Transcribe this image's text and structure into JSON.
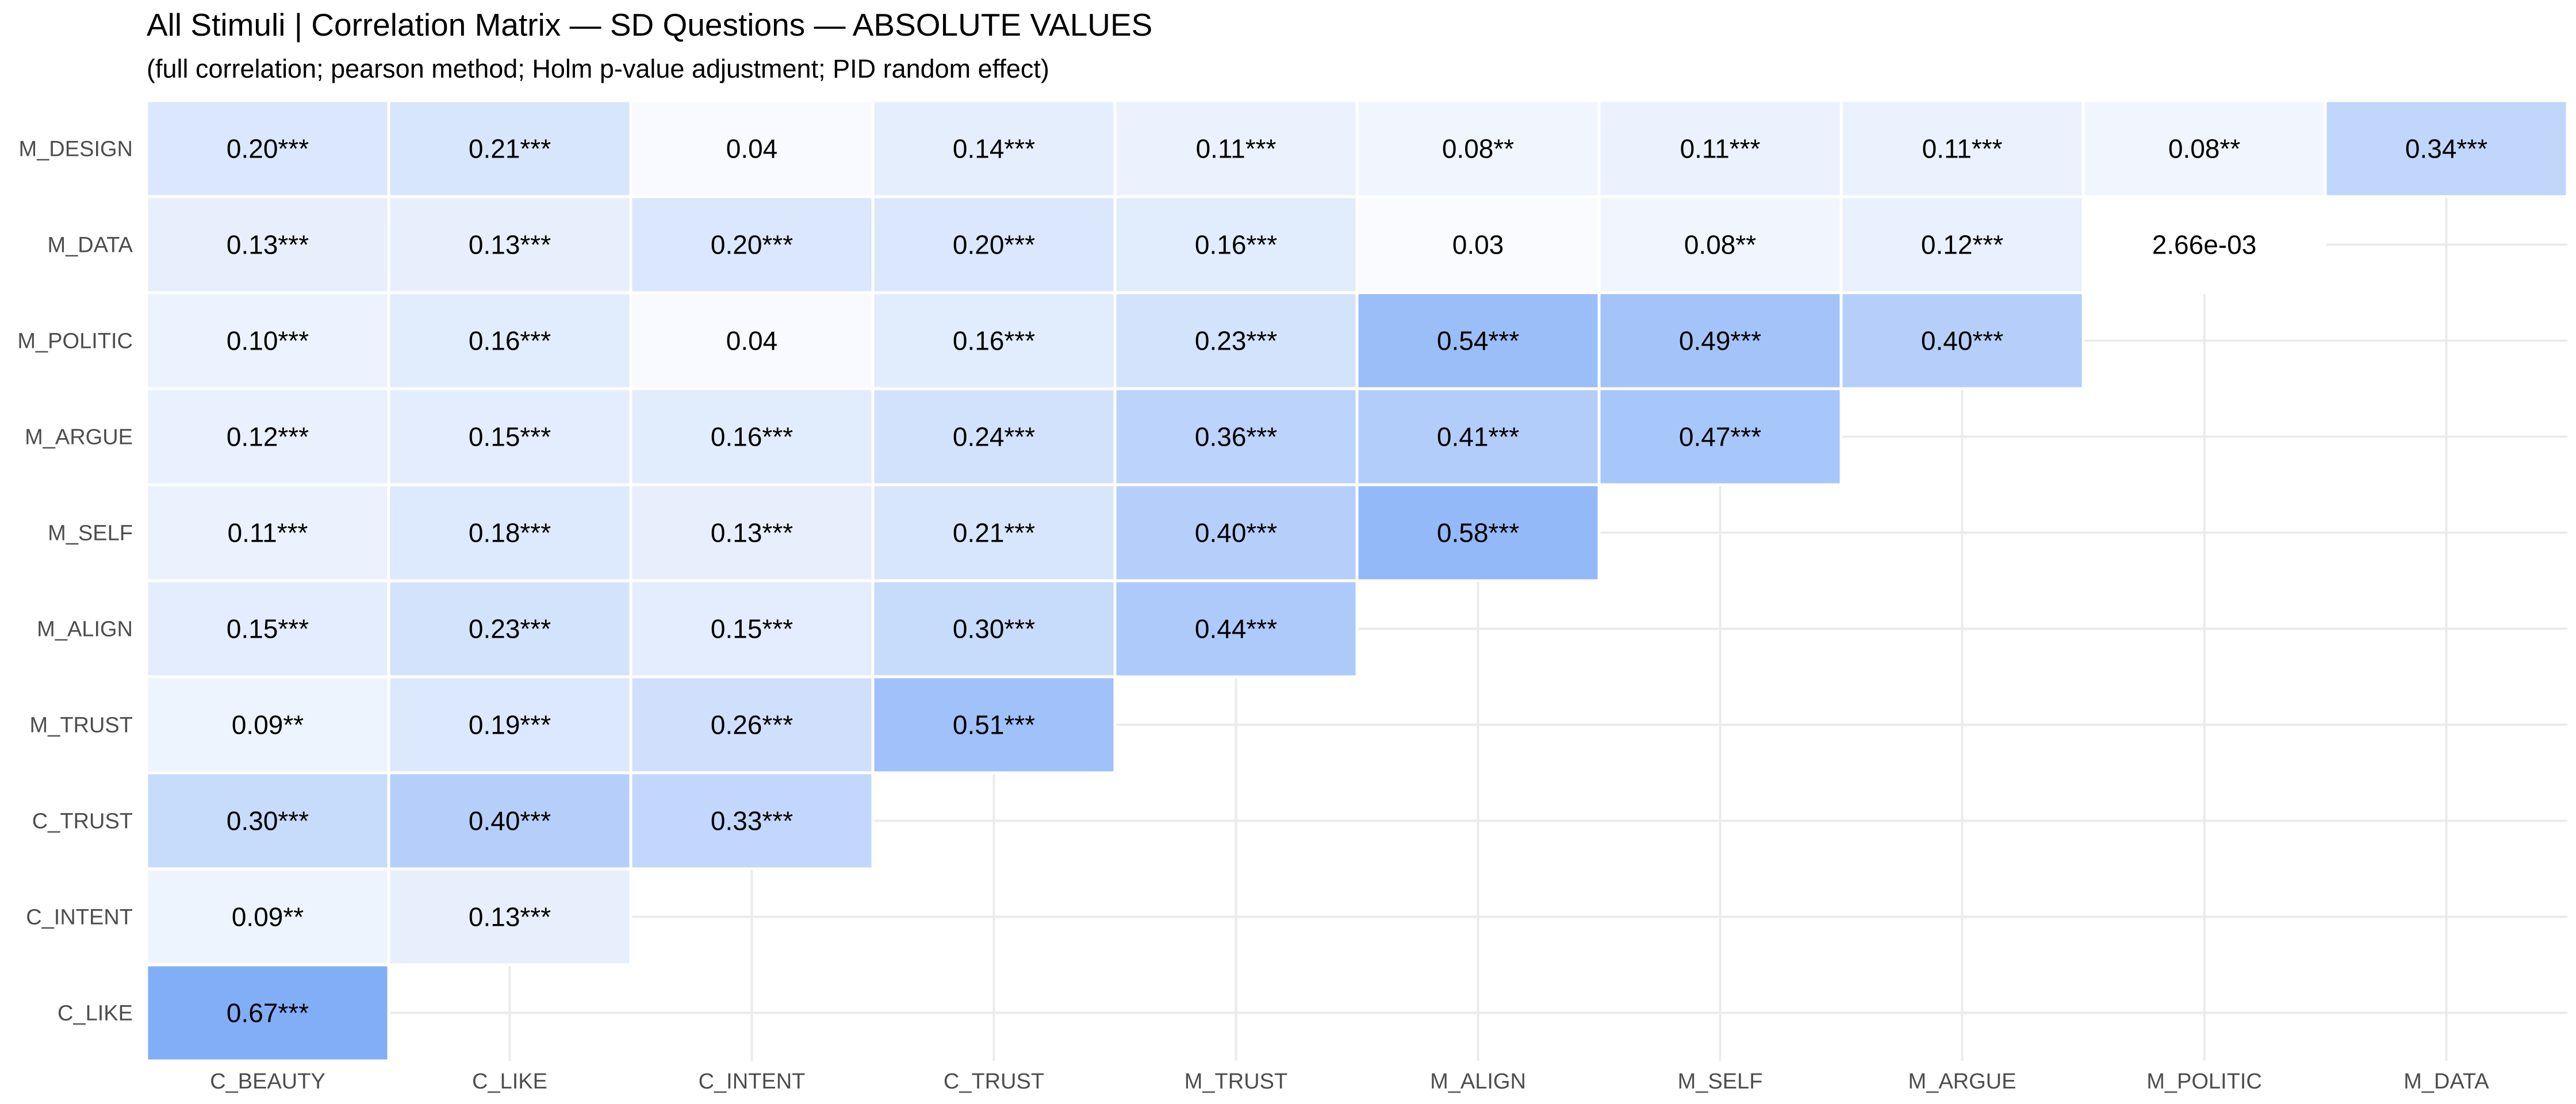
{
  "chart_data": {
    "type": "heatmap",
    "title": "All Stimuli | Correlation Matrix — SD Questions — ABSOLUTE VALUES",
    "subtitle": "(full correlation; pearson method; Holm p-value adjustment; PID random effect)",
    "x_categories": [
      "C_BEAUTY",
      "C_LIKE",
      "C_INTENT",
      "C_TRUST",
      "M_TRUST",
      "M_ALIGN",
      "M_SELF",
      "M_ARGUE",
      "M_POLITIC",
      "M_DATA"
    ],
    "y_categories": [
      "M_DESIGN",
      "M_DATA",
      "M_POLITIC",
      "M_ARGUE",
      "M_SELF",
      "M_ALIGN",
      "M_TRUST",
      "C_TRUST",
      "C_INTENT",
      "C_LIKE"
    ],
    "cells": [
      {
        "x": "C_BEAUTY",
        "y": "M_DESIGN",
        "value": 0.2,
        "label": "0.20***"
      },
      {
        "x": "C_LIKE",
        "y": "M_DESIGN",
        "value": 0.21,
        "label": "0.21***"
      },
      {
        "x": "C_INTENT",
        "y": "M_DESIGN",
        "value": 0.04,
        "label": "0.04"
      },
      {
        "x": "C_TRUST",
        "y": "M_DESIGN",
        "value": 0.14,
        "label": "0.14***"
      },
      {
        "x": "M_TRUST",
        "y": "M_DESIGN",
        "value": 0.11,
        "label": "0.11***"
      },
      {
        "x": "M_ALIGN",
        "y": "M_DESIGN",
        "value": 0.08,
        "label": "0.08**"
      },
      {
        "x": "M_SELF",
        "y": "M_DESIGN",
        "value": 0.11,
        "label": "0.11***"
      },
      {
        "x": "M_ARGUE",
        "y": "M_DESIGN",
        "value": 0.11,
        "label": "0.11***"
      },
      {
        "x": "M_POLITIC",
        "y": "M_DESIGN",
        "value": 0.08,
        "label": "0.08**"
      },
      {
        "x": "M_DATA",
        "y": "M_DESIGN",
        "value": 0.34,
        "label": "0.34***"
      },
      {
        "x": "C_BEAUTY",
        "y": "M_DATA",
        "value": 0.13,
        "label": "0.13***"
      },
      {
        "x": "C_LIKE",
        "y": "M_DATA",
        "value": 0.13,
        "label": "0.13***"
      },
      {
        "x": "C_INTENT",
        "y": "M_DATA",
        "value": 0.2,
        "label": "0.20***"
      },
      {
        "x": "C_TRUST",
        "y": "M_DATA",
        "value": 0.2,
        "label": "0.20***"
      },
      {
        "x": "M_TRUST",
        "y": "M_DATA",
        "value": 0.16,
        "label": "0.16***"
      },
      {
        "x": "M_ALIGN",
        "y": "M_DATA",
        "value": 0.03,
        "label": "0.03"
      },
      {
        "x": "M_SELF",
        "y": "M_DATA",
        "value": 0.08,
        "label": "0.08**"
      },
      {
        "x": "M_ARGUE",
        "y": "M_DATA",
        "value": 0.12,
        "label": "0.12***"
      },
      {
        "x": "M_POLITIC",
        "y": "M_DATA",
        "value": 0.00266,
        "label": "2.66e-03"
      },
      {
        "x": "C_BEAUTY",
        "y": "M_POLITIC",
        "value": 0.1,
        "label": "0.10***"
      },
      {
        "x": "C_LIKE",
        "y": "M_POLITIC",
        "value": 0.16,
        "label": "0.16***"
      },
      {
        "x": "C_INTENT",
        "y": "M_POLITIC",
        "value": 0.04,
        "label": "0.04"
      },
      {
        "x": "C_TRUST",
        "y": "M_POLITIC",
        "value": 0.16,
        "label": "0.16***"
      },
      {
        "x": "M_TRUST",
        "y": "M_POLITIC",
        "value": 0.23,
        "label": "0.23***"
      },
      {
        "x": "M_ALIGN",
        "y": "M_POLITIC",
        "value": 0.54,
        "label": "0.54***"
      },
      {
        "x": "M_SELF",
        "y": "M_POLITIC",
        "value": 0.49,
        "label": "0.49***"
      },
      {
        "x": "M_ARGUE",
        "y": "M_POLITIC",
        "value": 0.4,
        "label": "0.40***"
      },
      {
        "x": "C_BEAUTY",
        "y": "M_ARGUE",
        "value": 0.12,
        "label": "0.12***"
      },
      {
        "x": "C_LIKE",
        "y": "M_ARGUE",
        "value": 0.15,
        "label": "0.15***"
      },
      {
        "x": "C_INTENT",
        "y": "M_ARGUE",
        "value": 0.16,
        "label": "0.16***"
      },
      {
        "x": "C_TRUST",
        "y": "M_ARGUE",
        "value": 0.24,
        "label": "0.24***"
      },
      {
        "x": "M_TRUST",
        "y": "M_ARGUE",
        "value": 0.36,
        "label": "0.36***"
      },
      {
        "x": "M_ALIGN",
        "y": "M_ARGUE",
        "value": 0.41,
        "label": "0.41***"
      },
      {
        "x": "M_SELF",
        "y": "M_ARGUE",
        "value": 0.47,
        "label": "0.47***"
      },
      {
        "x": "C_BEAUTY",
        "y": "M_SELF",
        "value": 0.11,
        "label": "0.11***"
      },
      {
        "x": "C_LIKE",
        "y": "M_SELF",
        "value": 0.18,
        "label": "0.18***"
      },
      {
        "x": "C_INTENT",
        "y": "M_SELF",
        "value": 0.13,
        "label": "0.13***"
      },
      {
        "x": "C_TRUST",
        "y": "M_SELF",
        "value": 0.21,
        "label": "0.21***"
      },
      {
        "x": "M_TRUST",
        "y": "M_SELF",
        "value": 0.4,
        "label": "0.40***"
      },
      {
        "x": "M_ALIGN",
        "y": "M_SELF",
        "value": 0.58,
        "label": "0.58***"
      },
      {
        "x": "C_BEAUTY",
        "y": "M_ALIGN",
        "value": 0.15,
        "label": "0.15***"
      },
      {
        "x": "C_LIKE",
        "y": "M_ALIGN",
        "value": 0.23,
        "label": "0.23***"
      },
      {
        "x": "C_INTENT",
        "y": "M_ALIGN",
        "value": 0.15,
        "label": "0.15***"
      },
      {
        "x": "C_TRUST",
        "y": "M_ALIGN",
        "value": 0.3,
        "label": "0.30***"
      },
      {
        "x": "M_TRUST",
        "y": "M_ALIGN",
        "value": 0.44,
        "label": "0.44***"
      },
      {
        "x": "C_BEAUTY",
        "y": "M_TRUST",
        "value": 0.09,
        "label": "0.09**"
      },
      {
        "x": "C_LIKE",
        "y": "M_TRUST",
        "value": 0.19,
        "label": "0.19***"
      },
      {
        "x": "C_INTENT",
        "y": "M_TRUST",
        "value": 0.26,
        "label": "0.26***"
      },
      {
        "x": "C_TRUST",
        "y": "M_TRUST",
        "value": 0.51,
        "label": "0.51***"
      },
      {
        "x": "C_BEAUTY",
        "y": "C_TRUST",
        "value": 0.3,
        "label": "0.30***"
      },
      {
        "x": "C_LIKE",
        "y": "C_TRUST",
        "value": 0.4,
        "label": "0.40***"
      },
      {
        "x": "C_INTENT",
        "y": "C_TRUST",
        "value": 0.33,
        "label": "0.33***"
      },
      {
        "x": "C_BEAUTY",
        "y": "C_INTENT",
        "value": 0.09,
        "label": "0.09**"
      },
      {
        "x": "C_LIKE",
        "y": "C_INTENT",
        "value": 0.13,
        "label": "0.13***"
      },
      {
        "x": "C_BEAUTY",
        "y": "C_LIKE",
        "value": 0.67,
        "label": "0.67***"
      }
    ],
    "color_low": "#ffffff",
    "color_high": "#6a9ef5",
    "color_domain": [
      0,
      0.8
    ],
    "grid": true,
    "legend": "none"
  }
}
